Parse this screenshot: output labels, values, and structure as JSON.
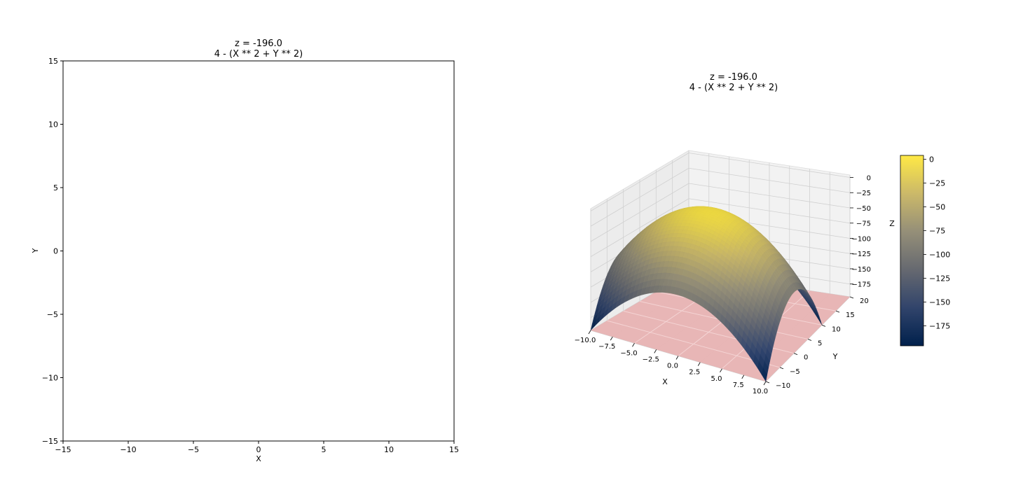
{
  "chart_data": [
    {
      "type": "contour",
      "title": "z = -196.0",
      "subtitle": "4 - (X ** 2 + Y ** 2)",
      "xlabel": "X",
      "ylabel": "Y",
      "xlim": [
        -15,
        15
      ],
      "ylim": [
        -15,
        15
      ],
      "xticks": [
        -15,
        -10,
        -5,
        0,
        5,
        10,
        15
      ],
      "yticks": [
        -15,
        -10,
        -5,
        0,
        5,
        10,
        15
      ],
      "x_tick_labels": [
        "−15",
        "−10",
        "−5",
        "0",
        "5",
        "10",
        "15"
      ],
      "y_tick_labels": [
        "−15",
        "−10",
        "−5",
        "0",
        "5",
        "10",
        "15"
      ],
      "contour_level": -196.0,
      "grid": false
    },
    {
      "type": "surface3d",
      "title": "z = -196.0",
      "subtitle": "4 - (X ** 2 + Y ** 2)",
      "expression": "4 - (X ** 2 + Y ** 2)",
      "xlabel": "X",
      "ylabel": "Y",
      "zlabel": "Z",
      "xlim": [
        -10,
        10
      ],
      "ylim": [
        -10,
        20
      ],
      "zlim": [
        -196,
        4
      ],
      "x_tick_labels": [
        "−10.0",
        "−7.5",
        "−5.0",
        "−2.5",
        "0.0",
        "2.5",
        "5.0",
        "7.5",
        "10.0"
      ],
      "y_tick_labels": [
        "−10",
        "−5",
        "0",
        "5",
        "10",
        "15",
        "20"
      ],
      "z_tick_labels": [
        "0",
        "−25",
        "−50",
        "−75",
        "−100",
        "−125",
        "−150",
        "−175"
      ],
      "plane_z": -196.0,
      "plane_color": "#e8b3b3",
      "colormap": [
        "#00204c",
        "#31446b",
        "#666970",
        "#958f78",
        "#cbb969",
        "#ffe945"
      ],
      "colorbar": {
        "range": [
          -196,
          4
        ],
        "ticks": [
          0,
          -25,
          -50,
          -75,
          -100,
          -125,
          -150,
          -175
        ],
        "tick_labels": [
          "0",
          "−25",
          "−50",
          "−75",
          "−100",
          "−125",
          "−150",
          "−175"
        ]
      },
      "grid": true
    }
  ]
}
